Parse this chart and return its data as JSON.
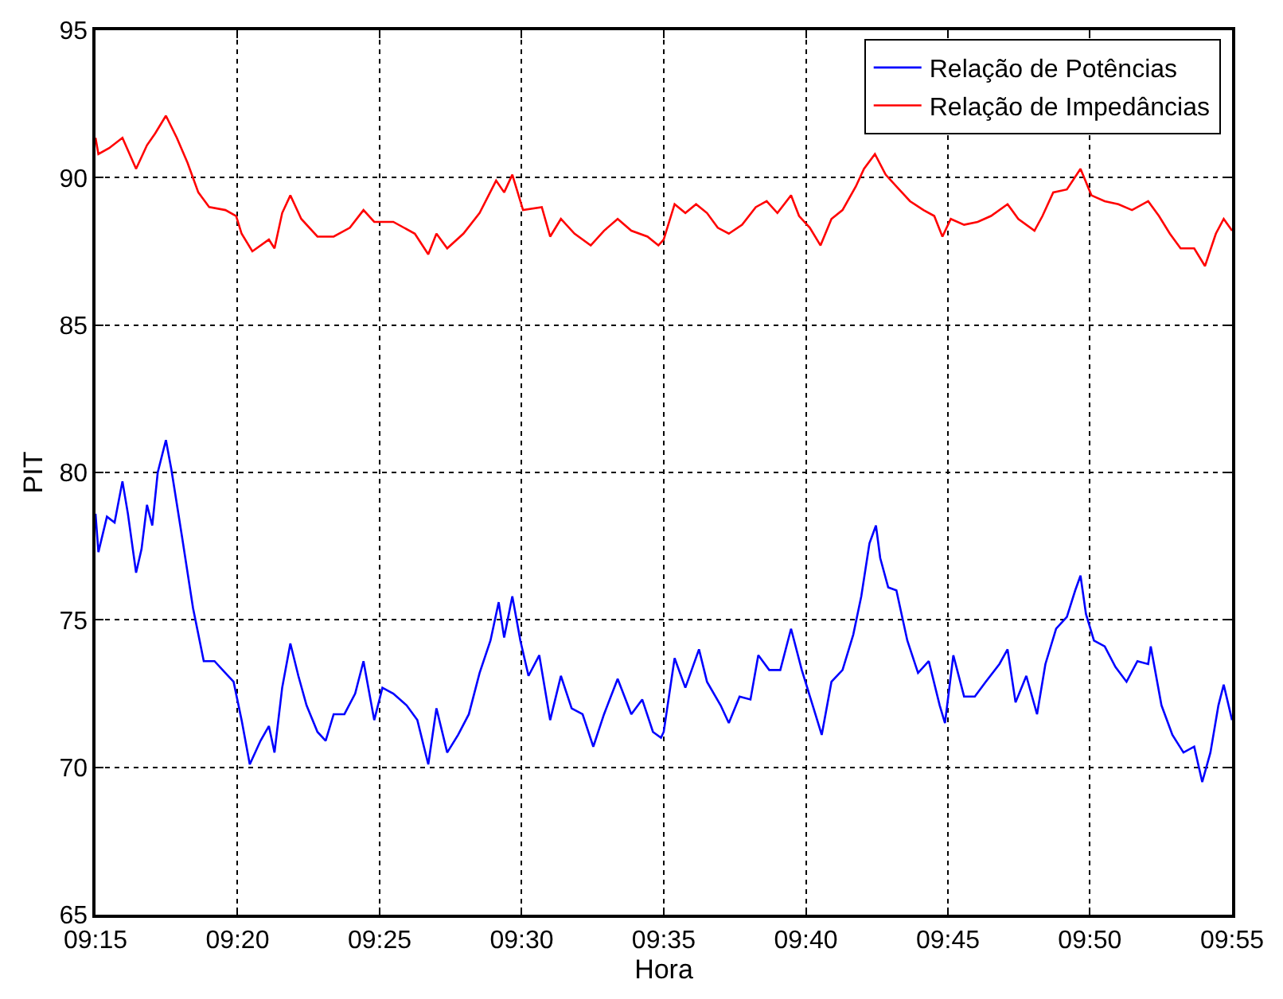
{
  "chart_data": {
    "type": "line",
    "xlabel": "Hora",
    "ylabel": "PIT",
    "xlim": [
      9.25,
      9.9167
    ],
    "ylim": [
      65,
      95
    ],
    "xticks": [
      {
        "value": 9.25,
        "label": "09:15"
      },
      {
        "value": 9.3333,
        "label": "09:20"
      },
      {
        "value": 9.4167,
        "label": "09:25"
      },
      {
        "value": 9.5,
        "label": "09:30"
      },
      {
        "value": 9.5833,
        "label": "09:35"
      },
      {
        "value": 9.6667,
        "label": "09:40"
      },
      {
        "value": 9.75,
        "label": "09:45"
      },
      {
        "value": 9.8333,
        "label": "09:50"
      },
      {
        "value": 9.9167,
        "label": "09:55"
      }
    ],
    "yticks": [
      65,
      70,
      75,
      80,
      85,
      90,
      95
    ],
    "grid": true,
    "legend": "top right",
    "line_style": "solid",
    "marker": "none",
    "series": [
      {
        "name": "Relação de Potências",
        "color": "#0000ff",
        "x": [
          9.25,
          9.2517,
          9.2567,
          9.2612,
          9.2658,
          9.269,
          9.2738,
          9.277,
          9.2802,
          9.2833,
          9.2865,
          9.2913,
          9.2945,
          9.3008,
          9.3072,
          9.3135,
          9.3198,
          9.3262,
          9.331,
          9.3357,
          9.3405,
          9.3468,
          9.3517,
          9.355,
          9.3595,
          9.3643,
          9.369,
          9.3738,
          9.3802,
          9.385,
          9.3897,
          9.396,
          9.4023,
          9.4072,
          9.4135,
          9.4183,
          9.4247,
          9.4325,
          9.4388,
          9.4452,
          9.45,
          9.4563,
          9.4627,
          9.469,
          9.4753,
          9.4817,
          9.4865,
          9.4897,
          9.4945,
          9.4992,
          9.504,
          9.5103,
          9.5167,
          9.523,
          9.5293,
          9.5357,
          9.542,
          9.5483,
          9.5563,
          9.5643,
          9.5707,
          9.577,
          9.5817,
          9.5833,
          9.5897,
          9.596,
          9.604,
          9.6087,
          9.6167,
          9.6215,
          9.6278,
          9.6342,
          9.6388,
          9.6452,
          9.6517,
          9.658,
          9.6643,
          9.6707,
          9.676,
          9.6817,
          9.6882,
          9.6945,
          9.6992,
          9.704,
          9.7078,
          9.7103,
          9.715,
          9.7198,
          9.7262,
          9.7325,
          9.7388,
          9.7452,
          9.7483,
          9.7532,
          9.7595,
          9.7658,
          9.7722,
          9.7802,
          9.785,
          9.7897,
          9.796,
          9.8023,
          9.8072,
          9.8135,
          9.8198,
          9.8247,
          9.8278,
          9.831,
          9.8357,
          9.842,
          9.8483,
          9.8548,
          9.8612,
          9.8675,
          9.869,
          9.8753,
          9.8817,
          9.8882,
          9.8945,
          9.8992,
          9.904,
          9.9087,
          9.9118,
          9.9167
        ],
        "values": [
          78.6,
          77.3,
          78.5,
          78.3,
          79.7,
          78.6,
          76.6,
          77.4,
          78.9,
          78.2,
          80.0,
          81.1,
          80.1,
          77.8,
          75.4,
          73.6,
          73.6,
          73.2,
          72.9,
          71.6,
          70.1,
          70.9,
          71.4,
          70.5,
          72.7,
          74.2,
          73.1,
          72.1,
          71.2,
          70.9,
          71.8,
          71.8,
          72.5,
          73.6,
          71.6,
          72.7,
          72.5,
          72.1,
          71.6,
          70.1,
          72.0,
          70.5,
          71.1,
          71.8,
          73.2,
          74.3,
          75.6,
          74.4,
          75.8,
          74.3,
          73.1,
          73.8,
          71.6,
          73.1,
          72.0,
          71.8,
          70.7,
          71.8,
          73.0,
          71.8,
          72.3,
          71.2,
          71.0,
          71.2,
          73.7,
          72.7,
          74.0,
          72.9,
          72.1,
          71.5,
          72.4,
          72.3,
          73.8,
          73.3,
          73.3,
          74.7,
          73.3,
          72.1,
          71.1,
          72.9,
          73.3,
          74.5,
          75.8,
          77.6,
          78.2,
          77.1,
          76.1,
          76.0,
          74.3,
          73.2,
          73.6,
          72.1,
          71.5,
          73.8,
          72.4,
          72.4,
          72.9,
          73.5,
          74.0,
          72.2,
          73.1,
          71.8,
          73.5,
          74.7,
          75.1,
          76.0,
          76.5,
          75.2,
          74.3,
          74.1,
          73.4,
          72.9,
          73.6,
          73.5,
          74.1,
          72.1,
          71.1,
          70.5,
          70.7,
          69.5,
          70.5,
          72.1,
          72.8,
          71.6
        ]
      },
      {
        "name": "Relação de Impedâncias",
        "color": "#ff0000",
        "x": [
          9.25,
          9.2517,
          9.258,
          9.2658,
          9.2738,
          9.2802,
          9.285,
          9.2913,
          9.2977,
          9.304,
          9.3103,
          9.3167,
          9.3262,
          9.3325,
          9.3357,
          9.342,
          9.3517,
          9.355,
          9.3595,
          9.3643,
          9.3707,
          9.3802,
          9.3897,
          9.3992,
          9.4072,
          9.4135,
          9.4247,
          9.4373,
          9.4452,
          9.45,
          9.4563,
          9.4658,
          9.4753,
          9.485,
          9.4897,
          9.4945,
          9.5008,
          9.5118,
          9.5167,
          9.523,
          9.531,
          9.5405,
          9.5483,
          9.5563,
          9.5643,
          9.5738,
          9.5802,
          9.5833,
          9.5897,
          9.596,
          9.6023,
          9.6087,
          9.615,
          9.6215,
          9.6293,
          9.6373,
          9.6437,
          9.65,
          9.658,
          9.6627,
          9.669,
          9.6753,
          9.6817,
          9.6882,
          9.696,
          9.7008,
          9.7072,
          9.7135,
          9.7198,
          9.7278,
          9.7357,
          9.742,
          9.7468,
          9.7517,
          9.7595,
          9.7675,
          9.7753,
          9.785,
          9.7913,
          9.8008,
          9.8055,
          9.8118,
          9.8198,
          9.8278,
          9.8342,
          9.842,
          9.85,
          9.858,
          9.8675,
          9.8738,
          9.8802,
          9.8865,
          9.8945,
          9.9008,
          9.9072,
          9.9118,
          9.9167
        ],
        "values": [
          91.35,
          90.8,
          91.0,
          91.35,
          90.3,
          91.1,
          91.5,
          92.1,
          91.35,
          90.5,
          89.5,
          89.0,
          88.9,
          88.7,
          88.1,
          87.5,
          87.9,
          87.6,
          88.8,
          89.4,
          88.6,
          88.0,
          88.0,
          88.3,
          88.9,
          88.5,
          88.5,
          88.1,
          87.4,
          88.1,
          87.6,
          88.1,
          88.8,
          89.9,
          89.5,
          90.1,
          88.9,
          89.0,
          88.0,
          88.6,
          88.1,
          87.7,
          88.2,
          88.6,
          88.2,
          88.0,
          87.7,
          87.9,
          89.1,
          88.8,
          89.1,
          88.8,
          88.3,
          88.1,
          88.4,
          89.0,
          89.2,
          88.8,
          89.4,
          88.7,
          88.3,
          87.7,
          88.6,
          88.9,
          89.7,
          90.3,
          90.8,
          90.1,
          89.7,
          89.2,
          88.9,
          88.7,
          88.0,
          88.6,
          88.4,
          88.5,
          88.7,
          89.1,
          88.6,
          88.2,
          88.7,
          89.5,
          89.6,
          90.3,
          89.4,
          89.2,
          89.1,
          88.9,
          89.2,
          88.7,
          88.1,
          87.6,
          87.6,
          87.0,
          88.1,
          88.6,
          88.2
        ]
      }
    ]
  }
}
